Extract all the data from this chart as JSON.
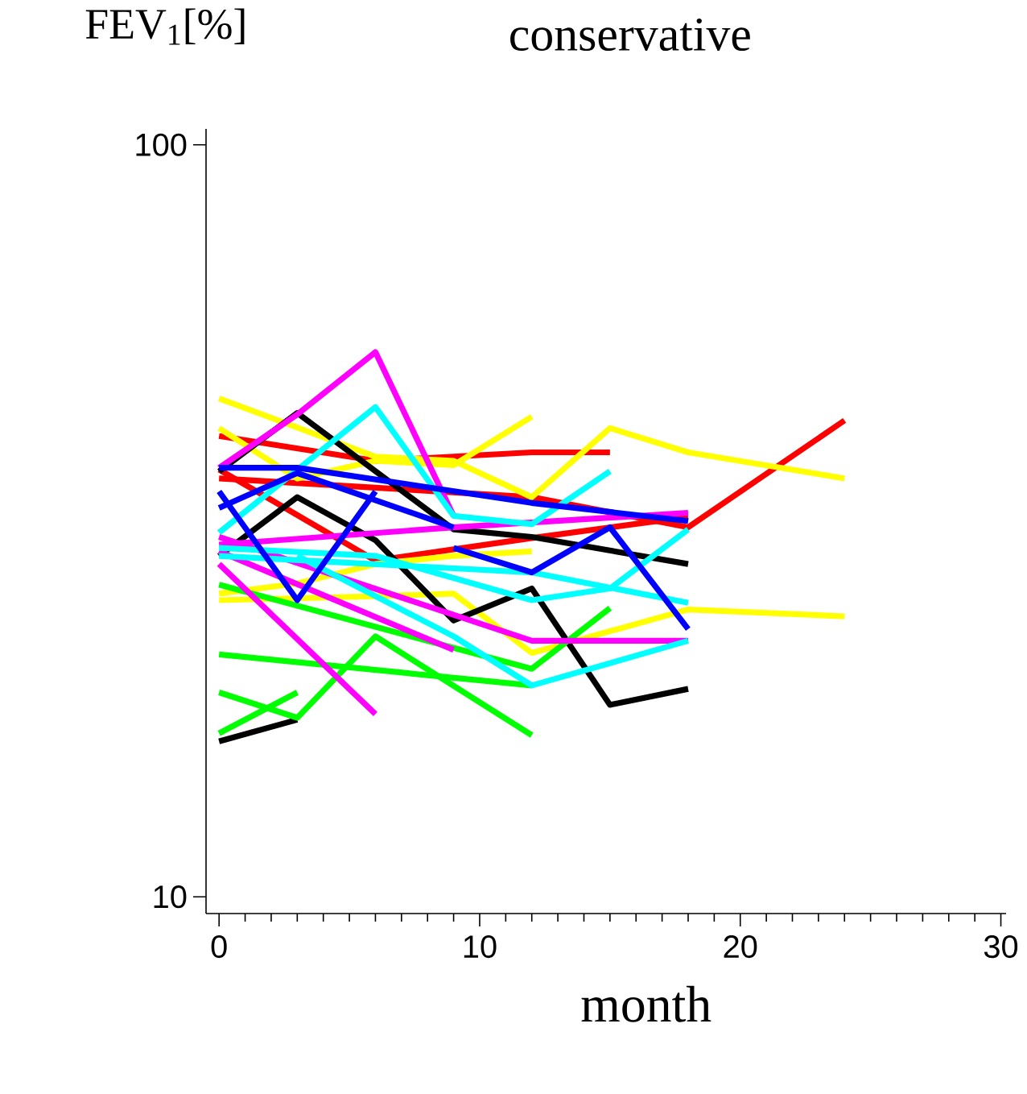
{
  "chart_data": {
    "type": "line",
    "title": "conservative",
    "xlabel": "month",
    "ylabel": "FEV$_{1}$[%]",
    "log": "y",
    "xlim": [
      -0.5,
      30.2
    ],
    "ylim": [
      9.5,
      105
    ],
    "xticks": [
      0,
      {
        "value": 1,
        "label": null
      },
      {
        "value": 2,
        "label": null
      },
      {
        "value": 3,
        "label": null
      },
      {
        "value": 4,
        "label": null
      },
      {
        "value": 5,
        "label": null
      },
      {
        "value": 6,
        "label": null
      },
      {
        "value": 7,
        "label": null
      },
      {
        "value": 8,
        "label": null
      },
      {
        "value": 9,
        "label": null
      },
      10,
      {
        "value": 11,
        "label": null
      },
      {
        "value": 12,
        "label": null
      },
      {
        "value": 13,
        "label": null
      },
      {
        "value": 14,
        "label": null
      },
      {
        "value": 15,
        "label": null
      },
      {
        "value": 16,
        "label": null
      },
      {
        "value": 17,
        "label": null
      },
      {
        "value": 18,
        "label": null
      },
      {
        "value": 19,
        "label": null
      },
      20,
      {
        "value": 21,
        "label": null
      },
      {
        "value": 22,
        "label": null
      },
      {
        "value": 23,
        "label": null
      },
      {
        "value": 24,
        "label": null
      },
      {
        "value": 25,
        "label": null
      },
      {
        "value": 26,
        "label": null
      },
      {
        "value": 27,
        "label": null
      },
      {
        "value": 28,
        "label": null
      },
      {
        "value": 29,
        "label": null
      },
      30
    ],
    "yticks": [
      10,
      100
    ],
    "series": [
      {
        "color": "#ff0000",
        "x": [
          0,
          6,
          12,
          15
        ],
        "values": [
          41,
          38,
          39,
          39
        ]
      },
      {
        "color": "#ff0000",
        "x": [
          0,
          6,
          12,
          18,
          24
        ],
        "values": [
          36,
          35,
          34,
          31,
          43
        ]
      },
      {
        "color": "#ff0000",
        "x": [
          0,
          6,
          12,
          18
        ],
        "values": [
          37,
          28,
          30,
          32
        ]
      },
      {
        "color": "#ffff00",
        "x": [
          0,
          6,
          9,
          12,
          15,
          18,
          24
        ],
        "values": [
          46,
          38.5,
          38,
          34,
          42,
          39,
          36
        ]
      },
      {
        "color": "#ffff00",
        "x": [
          0,
          3,
          6,
          9,
          12
        ],
        "values": [
          42,
          36,
          38,
          37.5,
          43.5
        ]
      },
      {
        "color": "#ffff00",
        "x": [
          0,
          3,
          6,
          9,
          12
        ],
        "values": [
          25.3,
          26.1,
          27.7,
          28.4,
          28.8
        ]
      },
      {
        "color": "#ffff00",
        "x": [
          0,
          6,
          9,
          12,
          18,
          24
        ],
        "values": [
          24.8,
          25.1,
          25.3,
          21.1,
          24.1,
          23.6
        ]
      },
      {
        "color": "#000000",
        "x": [
          0,
          3,
          9,
          12,
          18
        ],
        "values": [
          36.8,
          44,
          30.8,
          30.1,
          27.7
        ]
      },
      {
        "color": "#000000",
        "x": [
          0,
          3,
          6,
          9,
          12,
          15,
          18
        ],
        "values": [
          28.4,
          34,
          29.8,
          23.3,
          25.7,
          18,
          18.9
        ]
      },
      {
        "color": "#000000",
        "x": [
          0,
          3
        ],
        "values": [
          16.1,
          17.2
        ]
      },
      {
        "color": "#00ff00",
        "x": [
          0,
          12,
          15
        ],
        "values": [
          26,
          20.1,
          24.2
        ]
      },
      {
        "color": "#00ff00",
        "x": [
          0,
          12
        ],
        "values": [
          21,
          19.1
        ]
      },
      {
        "color": "#00ff00",
        "x": [
          0,
          3,
          6,
          12
        ],
        "values": [
          18.7,
          17.3,
          22.2,
          16.4
        ]
      },
      {
        "color": "#00ff00",
        "x": [
          0,
          3
        ],
        "values": [
          16.5,
          18.7
        ]
      },
      {
        "color": "#ff00ff",
        "x": [
          0,
          3,
          6,
          9
        ],
        "values": [
          37.2,
          43.8,
          53,
          32.1
        ]
      },
      {
        "color": "#ff00ff",
        "x": [
          0,
          9,
          18
        ],
        "values": [
          29.4,
          31,
          32.4
        ]
      },
      {
        "color": "#ff00ff",
        "x": [
          0,
          12,
          18
        ],
        "values": [
          30.1,
          21.9,
          21.9
        ]
      },
      {
        "color": "#ff00ff",
        "x": [
          0,
          9
        ],
        "values": [
          28.8,
          21.3
        ]
      },
      {
        "color": "#ff00ff",
        "x": [
          0,
          6
        ],
        "values": [
          27.7,
          17.5
        ]
      },
      {
        "color": "#00ffff",
        "x": [
          0,
          6,
          9,
          12,
          15
        ],
        "values": [
          30.5,
          44.8,
          32.1,
          31.3,
          36.8
        ]
      },
      {
        "color": "#00ffff",
        "x": [
          0,
          6,
          12,
          15,
          18
        ],
        "values": [
          29.1,
          28.4,
          24.8,
          25.7,
          30.8
        ]
      },
      {
        "color": "#00ffff",
        "x": [
          3,
          9,
          12,
          18
        ],
        "values": [
          28.4,
          22.2,
          19.1,
          21.9
        ]
      },
      {
        "color": "#00ffff",
        "x": [
          0,
          12,
          18
        ],
        "values": [
          28.4,
          27,
          24.6
        ]
      },
      {
        "color": "#0000ff",
        "x": [
          0,
          3,
          12,
          18
        ],
        "values": [
          37.2,
          37.2,
          33.4,
          31.6
        ]
      },
      {
        "color": "#0000ff",
        "x": [
          0,
          3,
          9
        ],
        "values": [
          32.9,
          36.6,
          31
        ]
      },
      {
        "color": "#0000ff",
        "x": [
          0,
          3,
          6
        ],
        "values": [
          34.6,
          24.8,
          34.6
        ]
      },
      {
        "color": "#0000ff",
        "x": [
          9,
          12,
          15,
          18
        ],
        "values": [
          29.1,
          27,
          31,
          22.7
        ]
      }
    ]
  }
}
